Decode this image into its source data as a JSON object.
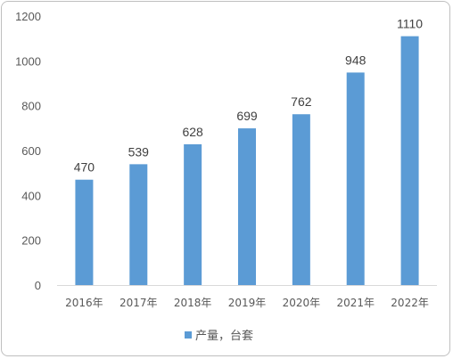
{
  "chart_data": {
    "type": "bar",
    "categories": [
      "2016年",
      "2017年",
      "2018年",
      "2019年",
      "2020年",
      "2021年",
      "2022年"
    ],
    "series": [
      {
        "name": "产量，台套",
        "values": [
          470,
          539,
          628,
          699,
          762,
          948,
          1110
        ],
        "color": "#5b9bd5"
      }
    ],
    "data_labels": [
      "470",
      "539",
      "628",
      "699",
      "762",
      "948",
      "1110"
    ],
    "yticks": [
      "0",
      "200",
      "400",
      "600",
      "800",
      "1000",
      "1200"
    ],
    "ylim": [
      0,
      1200
    ],
    "grid": false,
    "legend_position": "bottom",
    "axis_color": "#d9d9d9"
  }
}
